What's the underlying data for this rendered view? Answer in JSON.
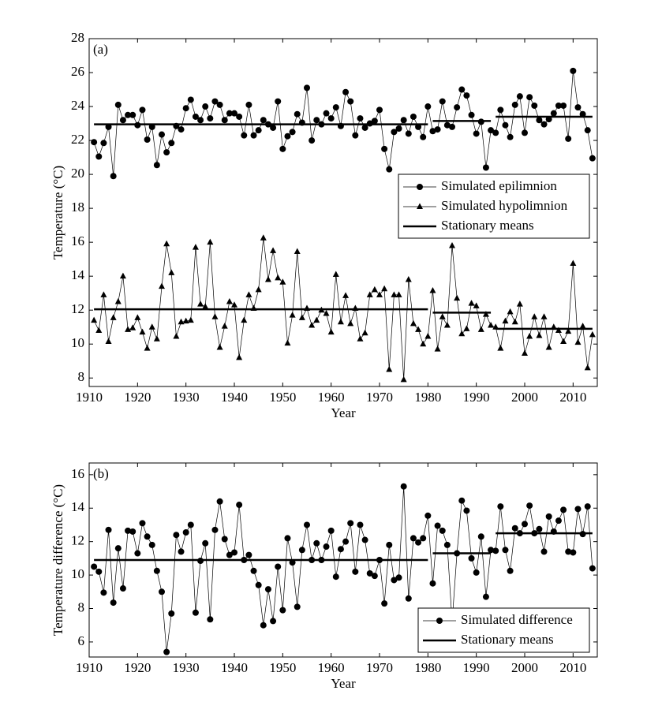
{
  "chart_data": [
    {
      "type": "line",
      "panel_label": "(a)",
      "xlabel": "Year",
      "ylabel": "Temperature (°C)",
      "xlim": [
        1910,
        2015
      ],
      "ylim": [
        7.5,
        28
      ],
      "xticks": [
        1910,
        1920,
        1930,
        1940,
        1950,
        1960,
        1970,
        1980,
        1990,
        2000,
        2010
      ],
      "yticks": [
        8,
        10,
        12,
        14,
        16,
        18,
        20,
        22,
        24,
        26,
        28
      ],
      "legend": "center right",
      "x": [
        1911,
        1912,
        1913,
        1914,
        1915,
        1916,
        1917,
        1918,
        1919,
        1920,
        1921,
        1922,
        1923,
        1924,
        1925,
        1926,
        1927,
        1928,
        1929,
        1930,
        1931,
        1932,
        1933,
        1934,
        1935,
        1936,
        1937,
        1938,
        1939,
        1940,
        1941,
        1942,
        1943,
        1944,
        1945,
        1946,
        1947,
        1948,
        1949,
        1950,
        1951,
        1952,
        1953,
        1954,
        1955,
        1956,
        1957,
        1958,
        1959,
        1960,
        1961,
        1962,
        1963,
        1964,
        1965,
        1966,
        1967,
        1968,
        1969,
        1970,
        1971,
        1972,
        1973,
        1974,
        1975,
        1976,
        1977,
        1978,
        1979,
        1980,
        1981,
        1982,
        1983,
        1984,
        1985,
        1986,
        1987,
        1988,
        1989,
        1990,
        1991,
        1992,
        1993,
        1994,
        1995,
        1996,
        1997,
        1998,
        1999,
        2000,
        2001,
        2002,
        2003,
        2004,
        2005,
        2006,
        2007,
        2008,
        2009,
        2010,
        2011,
        2012,
        2013,
        2014
      ],
      "series": [
        {
          "name": "Simulated epilimnion",
          "marker": "circle",
          "color": "#000000",
          "values": [
            21.9,
            21.05,
            21.85,
            22.8,
            19.9,
            24.1,
            23.2,
            23.5,
            23.5,
            22.9,
            23.8,
            22.05,
            22.8,
            20.55,
            22.35,
            21.3,
            21.85,
            22.85,
            22.65,
            23.9,
            24.4,
            23.4,
            23.2,
            24.0,
            23.3,
            24.3,
            24.1,
            23.2,
            23.6,
            23.6,
            23.4,
            22.3,
            24.1,
            22.3,
            22.6,
            23.2,
            22.95,
            22.75,
            24.3,
            21.5,
            22.25,
            22.5,
            23.55,
            23.05,
            25.1,
            22.0,
            23.2,
            22.95,
            23.6,
            23.3,
            23.95,
            22.85,
            24.85,
            24.3,
            22.3,
            23.3,
            22.75,
            23.0,
            23.15,
            23.8,
            21.5,
            20.3,
            22.5,
            22.7,
            23.2,
            22.4,
            23.4,
            22.8,
            22.2,
            24.0,
            22.55,
            22.65,
            24.3,
            22.9,
            22.8,
            23.95,
            25.0,
            24.65,
            23.5,
            22.4,
            23.1,
            20.4,
            22.6,
            22.45,
            23.8,
            22.9,
            22.2,
            24.1,
            24.6,
            22.45,
            24.55,
            24.05,
            23.2,
            22.95,
            23.25,
            23.6,
            24.05,
            24.05,
            22.1,
            26.1,
            23.95,
            23.55,
            22.6,
            20.95
          ]
        },
        {
          "name": "Simulated hypolimnion",
          "marker": "triangle",
          "color": "#000000",
          "values": [
            11.4,
            10.8,
            12.9,
            10.15,
            11.55,
            12.5,
            14.0,
            10.85,
            10.95,
            11.55,
            10.7,
            9.75,
            11.0,
            10.3,
            13.4,
            15.9,
            14.2,
            10.45,
            11.3,
            11.35,
            11.4,
            15.7,
            12.35,
            12.2,
            16.0,
            11.6,
            9.8,
            11.05,
            12.5,
            12.3,
            9.2,
            11.4,
            12.9,
            12.1,
            13.2,
            16.25,
            13.8,
            15.5,
            13.9,
            13.65,
            10.05,
            11.7,
            15.45,
            11.55,
            12.1,
            11.1,
            11.4,
            12.0,
            11.8,
            10.7,
            14.1,
            11.3,
            12.85,
            11.2,
            12.1,
            10.3,
            10.65,
            12.9,
            13.2,
            12.9,
            13.25,
            8.5,
            12.9,
            12.9,
            7.9,
            13.8,
            11.2,
            10.85,
            10.0,
            10.45,
            13.15,
            9.7,
            11.6,
            11.1,
            15.8,
            12.7,
            10.6,
            10.9,
            12.4,
            12.25,
            10.85,
            11.75,
            11.1,
            11.0,
            9.75,
            11.35,
            11.9,
            11.3,
            12.35,
            9.45,
            10.45,
            11.6,
            10.5,
            11.6,
            9.8,
            11.0,
            10.8,
            10.15,
            10.75,
            14.75,
            10.1,
            11.05,
            8.6,
            10.55
          ]
        }
      ],
      "means": {
        "name": "Stationary means",
        "color": "#000000",
        "segments": [
          {
            "start": 1911,
            "end": 1980,
            "value": 22.95
          },
          {
            "start": 1981,
            "end": 1993,
            "value": 23.15
          },
          {
            "start": 1994,
            "end": 2014,
            "value": 23.4
          },
          {
            "start": 1911,
            "end": 1980,
            "value": 12.05
          },
          {
            "start": 1981,
            "end": 1993,
            "value": 11.85
          },
          {
            "start": 1994,
            "end": 2014,
            "value": 10.9
          }
        ]
      }
    },
    {
      "type": "line",
      "panel_label": "(b)",
      "xlabel": "Year",
      "ylabel": "Temperature difference (°C)",
      "xlim": [
        1910,
        2015
      ],
      "ylim": [
        5.1,
        16.7
      ],
      "xticks": [
        1910,
        1920,
        1930,
        1940,
        1950,
        1960,
        1970,
        1980,
        1990,
        2000,
        2010
      ],
      "yticks": [
        6,
        8,
        10,
        12,
        14,
        16
      ],
      "legend": "lower right",
      "x": [
        1911,
        1912,
        1913,
        1914,
        1915,
        1916,
        1917,
        1918,
        1919,
        1920,
        1921,
        1922,
        1923,
        1924,
        1925,
        1926,
        1927,
        1928,
        1929,
        1930,
        1931,
        1932,
        1933,
        1934,
        1935,
        1936,
        1937,
        1938,
        1939,
        1940,
        1941,
        1942,
        1943,
        1944,
        1945,
        1946,
        1947,
        1948,
        1949,
        1950,
        1951,
        1952,
        1953,
        1954,
        1955,
        1956,
        1957,
        1958,
        1959,
        1960,
        1961,
        1962,
        1963,
        1964,
        1965,
        1966,
        1967,
        1968,
        1969,
        1970,
        1971,
        1972,
        1973,
        1974,
        1975,
        1976,
        1977,
        1978,
        1979,
        1980,
        1981,
        1982,
        1983,
        1984,
        1985,
        1986,
        1987,
        1988,
        1989,
        1990,
        1991,
        1992,
        1993,
        1994,
        1995,
        1996,
        1997,
        1998,
        1999,
        2000,
        2001,
        2002,
        2003,
        2004,
        2005,
        2006,
        2007,
        2008,
        2009,
        2010,
        2011,
        2012,
        2013,
        2014
      ],
      "series": [
        {
          "name": "Simulated difference",
          "marker": "circle",
          "color": "#000000",
          "values": [
            10.5,
            10.2,
            8.95,
            12.7,
            8.35,
            11.6,
            9.2,
            12.65,
            12.6,
            11.3,
            13.1,
            12.3,
            11.8,
            10.25,
            9.0,
            5.4,
            7.7,
            12.4,
            11.4,
            12.55,
            13.0,
            7.75,
            10.85,
            11.9,
            7.35,
            12.7,
            14.4,
            12.15,
            11.2,
            11.35,
            14.2,
            10.9,
            11.2,
            10.25,
            9.4,
            7.0,
            9.15,
            7.25,
            10.5,
            7.9,
            12.2,
            10.75,
            8.1,
            11.5,
            13.0,
            10.9,
            11.9,
            10.9,
            11.7,
            12.65,
            9.9,
            11.55,
            12.0,
            13.1,
            10.2,
            13.0,
            12.1,
            10.1,
            9.95,
            10.9,
            8.3,
            11.8,
            9.7,
            9.85,
            15.3,
            8.6,
            12.2,
            11.95,
            12.2,
            13.55,
            9.5,
            12.95,
            12.65,
            11.8,
            7.2,
            11.3,
            14.45,
            13.85,
            11.0,
            10.15,
            12.3,
            8.7,
            11.5,
            11.45,
            14.1,
            11.5,
            10.25,
            12.8,
            12.5,
            13.05,
            14.15,
            12.5,
            12.75,
            11.4,
            13.5,
            12.6,
            13.25,
            13.9,
            11.4,
            11.35,
            13.95,
            12.45,
            14.1,
            10.4
          ]
        }
      ],
      "means": {
        "name": "Stationary means",
        "color": "#000000",
        "segments": [
          {
            "start": 1911,
            "end": 1980,
            "value": 10.9
          },
          {
            "start": 1981,
            "end": 1993,
            "value": 11.3
          },
          {
            "start": 1994,
            "end": 2014,
            "value": 12.5
          }
        ]
      }
    }
  ]
}
